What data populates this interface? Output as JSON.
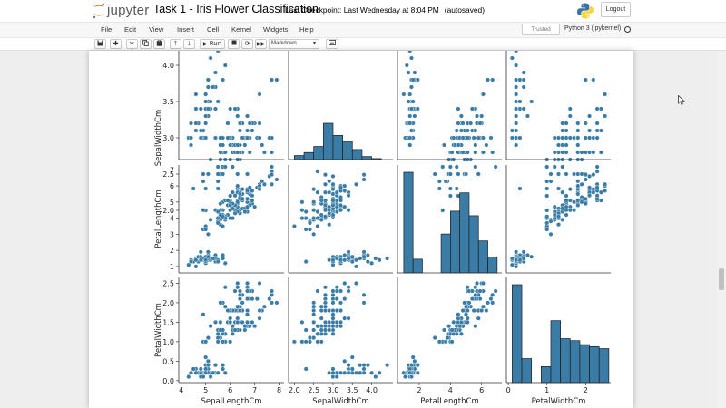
{
  "header": {
    "logo_text": "jupyter",
    "notebook_title": "Task 1 - Iris Flower Classification",
    "checkpoint_label": "Last Checkpoint: Last Wednesday at 8:04 PM",
    "autosave_status": "(autosaved)",
    "logout_label": "Logout"
  },
  "menubar": {
    "items": [
      "File",
      "Edit",
      "View",
      "Insert",
      "Cell",
      "Kernel",
      "Widgets",
      "Help"
    ],
    "trusted_label": "Trusted",
    "kernel_name": "Python 3 (ipykernel)"
  },
  "toolbar": {
    "run_label": "Run",
    "cell_type": "Markdown",
    "icons": [
      "save-icon",
      "add-cell-icon",
      "cut-icon",
      "copy-icon",
      "paste-icon",
      "move-up-icon",
      "move-down-icon",
      "run-icon",
      "interrupt-icon",
      "restart-icon",
      "restart-run-all-icon",
      "command-palette-icon"
    ]
  },
  "colors": {
    "marker": "#3a7ca5",
    "marker_edge": "#ffffff",
    "bar_fill": "#3a7ca5",
    "bar_edge": "#1f1f1f"
  },
  "chart_data": {
    "type": "scatter",
    "kind": "pairplot",
    "variables": [
      "SepalWidthCm",
      "PetalLengthCm",
      "PetalWidthCm"
    ],
    "column_variables": [
      "SepalLengthCm",
      "SepalWidthCm",
      "PetalLengthCm",
      "PetalWidthCm"
    ],
    "row_variables": [
      "SepalWidthCm",
      "PetalLengthCm",
      "PetalWidthCm"
    ],
    "ranges": {
      "SepalLengthCm": [
        3.9,
        8.2
      ],
      "SepalWidthCm": [
        1.85,
        4.55
      ],
      "PetalLengthCm": [
        0.6,
        7.3
      ],
      "PetalWidthCm": [
        -0.05,
        2.65
      ]
    },
    "ticks": {
      "x": {
        "SepalLengthCm": [
          4,
          5,
          6,
          7,
          8
        ],
        "SepalWidthCm": [
          2.0,
          2.5,
          3.0,
          3.5,
          4.0
        ],
        "PetalLengthCm": [
          2,
          4,
          6
        ],
        "PetalWidthCm": [
          0,
          1,
          2
        ]
      },
      "y": {
        "SepalWidthCm": [
          2.0,
          2.5,
          3.0,
          3.5,
          4.0
        ],
        "PetalLengthCm": [
          1,
          2,
          3,
          4,
          5,
          6,
          7
        ],
        "PetalWidthCm": [
          0.0,
          0.5,
          1.0,
          1.5,
          2.0,
          2.5
        ]
      }
    },
    "histograms": {
      "SepalWidthCm": {
        "edges": [
          2.0,
          2.25,
          2.5,
          2.75,
          3.0,
          3.25,
          3.5,
          3.75,
          4.0,
          4.25
        ],
        "counts": [
          4,
          7,
          13,
          36,
          24,
          18,
          10,
          3,
          1
        ],
        "max": 36
      },
      "PetalLengthCm": {
        "edges": [
          1.0,
          1.6,
          2.2,
          2.8,
          3.4,
          4.0,
          4.6,
          5.2,
          5.8,
          6.4,
          7.0
        ],
        "counts": [
          44,
          6,
          0,
          0,
          17,
          27,
          35,
          25,
          14,
          7
        ],
        "max": 44
      },
      "PetalWidthCm": {
        "edges": [
          0.1,
          0.35,
          0.6,
          0.85,
          1.1,
          1.35,
          1.6,
          1.85,
          2.1,
          2.35,
          2.6
        ],
        "counts": [
          49,
          12,
          0,
          8,
          31,
          22,
          21,
          19,
          18,
          17
        ],
        "max": 49
      }
    },
    "points": {
      "SepalLengthCm": [
        5.1,
        4.9,
        4.7,
        4.6,
        5.0,
        5.4,
        4.6,
        5.0,
        4.4,
        4.9,
        5.4,
        4.8,
        4.8,
        4.3,
        5.8,
        5.7,
        5.4,
        5.1,
        5.7,
        5.1,
        5.4,
        5.1,
        4.6,
        5.1,
        4.8,
        5.0,
        5.0,
        5.2,
        5.2,
        4.7,
        4.8,
        5.4,
        5.2,
        5.5,
        4.9,
        5.0,
        5.5,
        4.9,
        4.4,
        5.1,
        5.0,
        4.5,
        4.4,
        5.0,
        5.1,
        4.8,
        5.1,
        4.6,
        5.3,
        5.0,
        7.0,
        6.4,
        6.9,
        5.5,
        6.5,
        5.7,
        6.3,
        4.9,
        6.6,
        5.2,
        5.0,
        5.9,
        6.0,
        6.1,
        5.6,
        6.7,
        5.6,
        5.8,
        6.2,
        5.6,
        5.9,
        6.1,
        6.3,
        6.1,
        6.4,
        6.6,
        6.8,
        6.7,
        6.0,
        5.7,
        5.5,
        5.5,
        5.8,
        6.0,
        5.4,
        6.0,
        6.7,
        6.3,
        5.6,
        5.5,
        5.5,
        6.1,
        5.8,
        5.0,
        5.6,
        5.7,
        5.7,
        6.2,
        5.1,
        5.7,
        6.3,
        5.8,
        7.1,
        6.3,
        6.5,
        7.6,
        4.9,
        7.3,
        6.7,
        7.2,
        6.5,
        6.4,
        6.8,
        5.7,
        5.8,
        6.4,
        6.5,
        7.7,
        7.7,
        6.0,
        6.9,
        5.6,
        7.7,
        6.3,
        6.7,
        7.2,
        6.2,
        6.1,
        6.4,
        7.2,
        7.4,
        7.9,
        6.4,
        6.3,
        6.1,
        7.7,
        6.3,
        6.4,
        6.0,
        6.9,
        6.7,
        6.9,
        5.8,
        6.8,
        6.7,
        6.7,
        6.3,
        6.5,
        6.2,
        5.9
      ],
      "SepalWidthCm": [
        3.5,
        3.0,
        3.2,
        3.1,
        3.6,
        3.9,
        3.4,
        3.4,
        2.9,
        3.1,
        3.7,
        3.4,
        3.0,
        3.0,
        4.0,
        4.4,
        3.9,
        3.5,
        3.8,
        3.8,
        3.4,
        3.7,
        3.6,
        3.3,
        3.4,
        3.0,
        3.4,
        3.5,
        3.4,
        3.2,
        3.1,
        3.4,
        4.1,
        4.2,
        3.1,
        3.2,
        3.5,
        3.1,
        3.0,
        3.4,
        3.5,
        2.3,
        3.2,
        3.5,
        3.8,
        3.0,
        3.8,
        3.2,
        3.7,
        3.3,
        3.2,
        3.2,
        3.1,
        2.3,
        2.8,
        2.8,
        3.3,
        2.4,
        2.9,
        2.7,
        2.0,
        3.0,
        2.2,
        2.9,
        2.9,
        3.1,
        3.0,
        2.7,
        2.2,
        2.5,
        3.2,
        2.8,
        2.5,
        2.8,
        2.9,
        3.0,
        2.8,
        3.0,
        2.9,
        2.6,
        2.4,
        2.4,
        2.7,
        2.7,
        3.0,
        3.4,
        3.1,
        2.3,
        3.0,
        2.5,
        2.6,
        3.0,
        2.6,
        2.3,
        2.7,
        3.0,
        2.9,
        2.9,
        2.5,
        2.8,
        3.3,
        2.7,
        3.0,
        2.9,
        3.0,
        3.0,
        2.5,
        2.9,
        2.5,
        3.6,
        3.2,
        2.7,
        3.0,
        2.5,
        2.8,
        3.2,
        3.0,
        3.8,
        2.6,
        2.2,
        3.2,
        2.8,
        2.8,
        2.7,
        3.3,
        3.2,
        2.8,
        3.0,
        2.8,
        3.0,
        2.8,
        3.8,
        2.8,
        2.8,
        2.6,
        3.0,
        3.4,
        3.1,
        3.0,
        3.1,
        3.1,
        3.1,
        2.7,
        3.2,
        3.3,
        3.0,
        2.5,
        3.0,
        3.4,
        3.0
      ],
      "PetalLengthCm": [
        1.4,
        1.4,
        1.3,
        1.5,
        1.4,
        1.7,
        1.4,
        1.5,
        1.4,
        1.5,
        1.5,
        1.6,
        1.4,
        1.1,
        1.2,
        1.5,
        1.3,
        1.4,
        1.7,
        1.5,
        1.7,
        1.5,
        1.0,
        1.7,
        1.9,
        1.6,
        1.6,
        1.5,
        1.4,
        1.6,
        1.6,
        1.5,
        1.5,
        1.4,
        1.5,
        1.2,
        1.3,
        1.5,
        1.3,
        1.5,
        1.3,
        1.3,
        1.3,
        1.6,
        1.9,
        1.4,
        1.6,
        1.4,
        1.5,
        1.4,
        4.7,
        4.5,
        4.9,
        4.0,
        4.6,
        4.5,
        4.7,
        3.3,
        4.6,
        3.9,
        3.5,
        4.2,
        4.0,
        4.7,
        3.6,
        4.4,
        4.5,
        4.1,
        4.5,
        3.9,
        4.8,
        4.0,
        4.9,
        4.7,
        4.3,
        4.4,
        4.8,
        5.0,
        4.5,
        3.5,
        3.8,
        3.7,
        3.9,
        5.1,
        4.5,
        4.5,
        4.7,
        4.4,
        4.1,
        4.0,
        4.4,
        4.6,
        4.0,
        3.3,
        4.2,
        4.2,
        4.2,
        4.3,
        3.0,
        4.1,
        6.0,
        5.1,
        5.9,
        5.6,
        5.8,
        6.6,
        4.5,
        6.3,
        5.8,
        6.1,
        5.1,
        5.3,
        5.5,
        5.0,
        5.1,
        5.3,
        5.5,
        6.7,
        6.9,
        5.0,
        5.7,
        4.9,
        6.7,
        4.9,
        5.7,
        6.0,
        4.8,
        4.9,
        5.6,
        5.8,
        6.1,
        6.4,
        5.6,
        5.1,
        5.6,
        6.1,
        5.6,
        5.5,
        4.8,
        5.4,
        5.6,
        5.1,
        5.1,
        5.9,
        5.7,
        5.2,
        5.0,
        5.2,
        5.4,
        5.1
      ],
      "PetalWidthCm": [
        0.2,
        0.2,
        0.2,
        0.2,
        0.2,
        0.4,
        0.3,
        0.2,
        0.2,
        0.1,
        0.2,
        0.2,
        0.1,
        0.1,
        0.2,
        0.4,
        0.4,
        0.3,
        0.3,
        0.3,
        0.2,
        0.4,
        0.2,
        0.5,
        0.2,
        0.2,
        0.4,
        0.2,
        0.2,
        0.2,
        0.2,
        0.4,
        0.1,
        0.2,
        0.1,
        0.2,
        0.2,
        0.1,
        0.2,
        0.2,
        0.3,
        0.3,
        0.2,
        0.6,
        0.4,
        0.3,
        0.2,
        0.2,
        0.2,
        0.2,
        1.4,
        1.5,
        1.5,
        1.3,
        1.5,
        1.3,
        1.6,
        1.0,
        1.3,
        1.4,
        1.0,
        1.5,
        1.0,
        1.4,
        1.3,
        1.4,
        1.5,
        1.0,
        1.5,
        1.1,
        1.8,
        1.3,
        1.5,
        1.2,
        1.3,
        1.4,
        1.4,
        1.7,
        1.5,
        1.0,
        1.1,
        1.0,
        1.2,
        1.6,
        1.5,
        1.6,
        1.5,
        1.3,
        1.3,
        1.3,
        1.2,
        1.4,
        1.2,
        1.0,
        1.3,
        1.2,
        1.3,
        1.3,
        1.1,
        1.3,
        2.5,
        1.9,
        2.1,
        1.8,
        2.2,
        2.1,
        1.7,
        1.8,
        1.8,
        2.5,
        2.0,
        1.9,
        2.1,
        2.0,
        2.4,
        2.3,
        1.8,
        2.2,
        2.3,
        1.5,
        2.3,
        2.0,
        2.0,
        1.8,
        2.1,
        1.8,
        1.8,
        1.8,
        2.1,
        1.6,
        1.9,
        2.0,
        2.2,
        1.5,
        1.4,
        2.3,
        2.4,
        1.8,
        1.8,
        2.1,
        2.4,
        2.3,
        1.9,
        2.3,
        2.5,
        2.3,
        1.9,
        2.0,
        2.3,
        1.8
      ]
    }
  }
}
